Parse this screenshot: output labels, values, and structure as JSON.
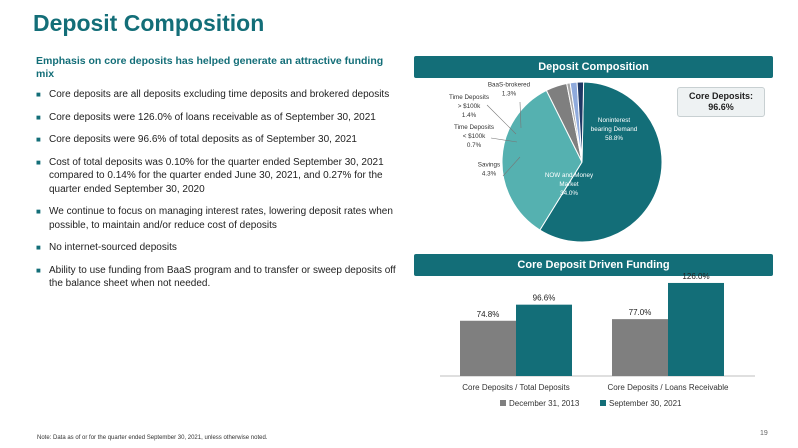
{
  "title": "Deposit Composition",
  "subtitle": "Emphasis on core deposits has helped generate an attractive funding mix",
  "bullets": [
    "Core deposits are all deposits excluding time deposits and brokered deposits",
    "Core deposits were 126.0% of loans receivable as of September 30, 2021",
    "Core deposits were 96.6% of total deposits as of September 30, 2021",
    "Cost of total deposits was 0.10% for the quarter ended September 30, 2021 compared to 0.14% for the quarter ended June 30, 2021, and 0.27%  for the quarter ended September 30, 2020",
    "We continue to focus on managing interest rates, lowering deposit rates when possible, to maintain and/or reduce cost of deposits",
    "No internet-sourced deposits",
    "Ability to use funding from BaaS program and to transfer or sweep deposits off the balance sheet when not needed."
  ],
  "core_box": {
    "label": "Core Deposits:",
    "value": "96.6%"
  },
  "note": "Note: Data as of or for the quarter ended September 30, 2021, unless otherwise noted.",
  "page_number": "19",
  "colors": {
    "teal": "#136e78",
    "light_teal": "#55b1b0",
    "gray": "#7f7f7f",
    "blue": "#4472c4",
    "navy": "#1f3864"
  },
  "chart_data": [
    {
      "type": "pie",
      "title": "Deposit Composition",
      "slices": [
        {
          "label": "Noninterest bearing Demand",
          "value": 58.8,
          "display": "58.8%",
          "color": "#136e78"
        },
        {
          "label": "NOW and Money Market",
          "value": 34.0,
          "display": "34.0%",
          "color": "#55b1b0"
        },
        {
          "label": "Savings",
          "value": 4.3,
          "display": "4.3%",
          "color": "#7f7f7f"
        },
        {
          "label": "Time Deposits < $100k",
          "value": 0.7,
          "display": "0.7%",
          "color": "#a6a6a6"
        },
        {
          "label": "Time Deposits > $100k",
          "value": 1.4,
          "display": "1.4%",
          "color": "#8faadc"
        },
        {
          "label": "BaaS-brokered",
          "value": 1.3,
          "display": "1.3%",
          "color": "#1f3864"
        }
      ]
    },
    {
      "type": "bar",
      "title": "Core Deposit Driven Funding",
      "categories": [
        "Core Deposits / Total Deposits",
        "Core Deposits / Loans Receivable"
      ],
      "series": [
        {
          "name": "December 31, 2013",
          "values": [
            74.8,
            77.0
          ],
          "labels": [
            "74.8%",
            "77.0%"
          ],
          "color": "#7f7f7f"
        },
        {
          "name": "September 30, 2021",
          "values": [
            96.6,
            126.0
          ],
          "labels": [
            "96.6%",
            "126.0%"
          ],
          "color": "#136e78"
        }
      ],
      "ylim": [
        0,
        130
      ]
    }
  ]
}
